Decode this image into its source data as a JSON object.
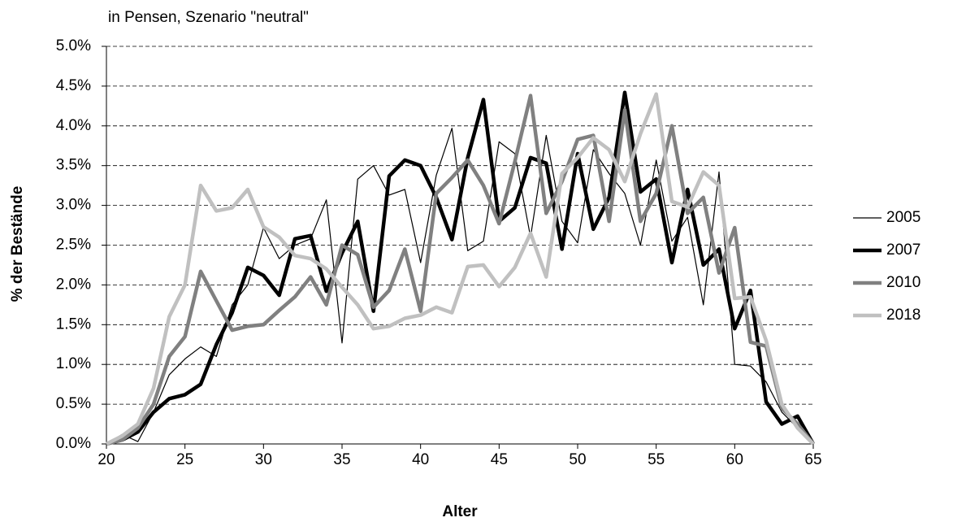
{
  "chart_data": {
    "type": "line",
    "title": "in Pensen, Szenario \"neutral\"",
    "x_label": "Alter",
    "y_label": "% der Bestände",
    "x": [
      20,
      21,
      22,
      23,
      24,
      25,
      26,
      27,
      28,
      29,
      30,
      31,
      32,
      33,
      34,
      35,
      36,
      37,
      38,
      39,
      40,
      41,
      42,
      43,
      44,
      45,
      46,
      47,
      48,
      49,
      50,
      51,
      52,
      53,
      54,
      55,
      56,
      57,
      58,
      59,
      60,
      61,
      62,
      63,
      64,
      65
    ],
    "xlim": [
      20,
      65
    ],
    "xticks": [
      20,
      25,
      30,
      35,
      40,
      45,
      50,
      55,
      60,
      65
    ],
    "ylim": [
      0,
      5
    ],
    "yticks": [
      {
        "value": 0,
        "label": "0.0%"
      },
      {
        "value": 0.5,
        "label": "0.5%"
      },
      {
        "value": 1,
        "label": "1.0%"
      },
      {
        "value": 1.5,
        "label": "1.5%"
      },
      {
        "value": 2,
        "label": "2.0%"
      },
      {
        "value": 2.5,
        "label": "2.5%"
      },
      {
        "value": 3,
        "label": "3.0%"
      },
      {
        "value": 3.5,
        "label": "3.5%"
      },
      {
        "value": 4,
        "label": "4.0%"
      },
      {
        "value": 4.5,
        "label": "4.5%"
      },
      {
        "value": 5,
        "label": "5.0%"
      }
    ],
    "grid": true,
    "legend": "right",
    "series": [
      {
        "name": "2005",
        "color": "#000000",
        "line_width": 1.2,
        "values": [
          0,
          0.12,
          0.03,
          0.4,
          0.87,
          1.07,
          1.22,
          1.1,
          1.75,
          2.0,
          2.72,
          2.33,
          2.5,
          2.58,
          3.07,
          1.27,
          3.33,
          3.5,
          3.13,
          3.2,
          2.28,
          3.38,
          3.97,
          2.43,
          2.55,
          3.8,
          3.65,
          2.6,
          3.88,
          2.8,
          2.53,
          3.7,
          3.4,
          3.15,
          2.5,
          3.57,
          2.55,
          2.85,
          1.75,
          3.42,
          1.0,
          0.98,
          0.78,
          0.4,
          0.2,
          0
        ]
      },
      {
        "name": "2007",
        "color": "#000000",
        "line_width": 4.5,
        "values": [
          0,
          0.05,
          0.15,
          0.4,
          0.57,
          0.62,
          0.75,
          1.25,
          1.65,
          2.22,
          2.12,
          1.87,
          2.58,
          2.62,
          1.92,
          2.4,
          2.8,
          1.67,
          3.37,
          3.57,
          3.5,
          3.1,
          2.57,
          3.6,
          4.33,
          2.8,
          2.97,
          3.6,
          3.53,
          2.45,
          3.65,
          2.7,
          3.1,
          4.42,
          3.17,
          3.33,
          2.28,
          3.2,
          2.25,
          2.45,
          1.45,
          1.93,
          0.53,
          0.25,
          0.35,
          0
        ]
      },
      {
        "name": "2010",
        "color": "#808080",
        "line_width": 4.5,
        "values": [
          0,
          0.05,
          0.2,
          0.5,
          1.1,
          1.35,
          2.17,
          1.8,
          1.43,
          1.48,
          1.5,
          1.68,
          1.85,
          2.1,
          1.75,
          2.5,
          2.38,
          1.72,
          1.93,
          2.45,
          1.67,
          3.15,
          3.35,
          3.57,
          3.25,
          2.77,
          3.55,
          4.38,
          2.9,
          3.3,
          3.83,
          3.88,
          2.8,
          4.2,
          2.8,
          3.15,
          4.0,
          2.9,
          3.1,
          2.15,
          2.72,
          1.28,
          1.23,
          0.45,
          0.25,
          0
        ]
      },
      {
        "name": "2018",
        "color": "#c0c0c0",
        "line_width": 4.5,
        "values": [
          0,
          0.1,
          0.25,
          0.7,
          1.6,
          2.0,
          3.25,
          2.93,
          2.97,
          3.2,
          2.73,
          2.6,
          2.37,
          2.33,
          2.2,
          1.97,
          1.75,
          1.45,
          1.48,
          1.58,
          1.62,
          1.72,
          1.65,
          2.23,
          2.25,
          1.98,
          2.22,
          2.65,
          2.1,
          3.4,
          3.6,
          3.85,
          3.7,
          3.3,
          3.9,
          4.4,
          3.05,
          2.98,
          3.42,
          3.25,
          1.83,
          1.85,
          1.3,
          0.5,
          0.2,
          0
        ]
      }
    ]
  }
}
